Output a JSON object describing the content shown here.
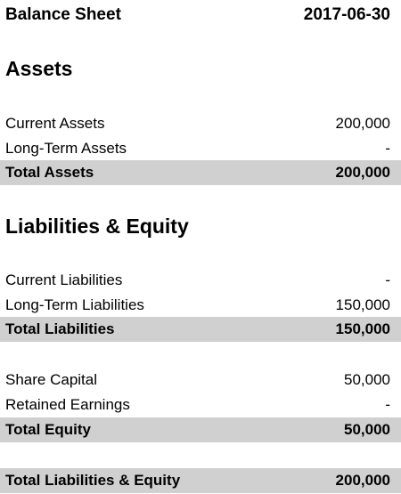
{
  "header": {
    "title": "Balance Sheet",
    "date": "2017-06-30"
  },
  "assets": {
    "section_title": "Assets",
    "rows": [
      {
        "label": "Current Assets",
        "value": "200,000"
      },
      {
        "label": "Long-Term Assets",
        "value": "-"
      }
    ],
    "total": {
      "label": "Total Assets",
      "value": "200,000"
    }
  },
  "liabilities_equity": {
    "section_title": "Liabilities & Equity",
    "liabilities": {
      "rows": [
        {
          "label": "Current Liabilities",
          "value": "-"
        },
        {
          "label": "Long-Term Liabilities",
          "value": "150,000"
        }
      ],
      "total": {
        "label": "Total Liabilities",
        "value": "150,000"
      }
    },
    "equity": {
      "rows": [
        {
          "label": "Share Capital",
          "value": "50,000"
        },
        {
          "label": "Retained Earnings",
          "value": "-"
        }
      ],
      "total": {
        "label": "Total Equity",
        "value": "50,000"
      }
    },
    "grand_total": {
      "label": "Total Liabilities & Equity",
      "value": "200,000"
    }
  },
  "colors": {
    "total_row_background": "#d0d0d0",
    "text": "#000000",
    "page_background": "#ffffff"
  }
}
